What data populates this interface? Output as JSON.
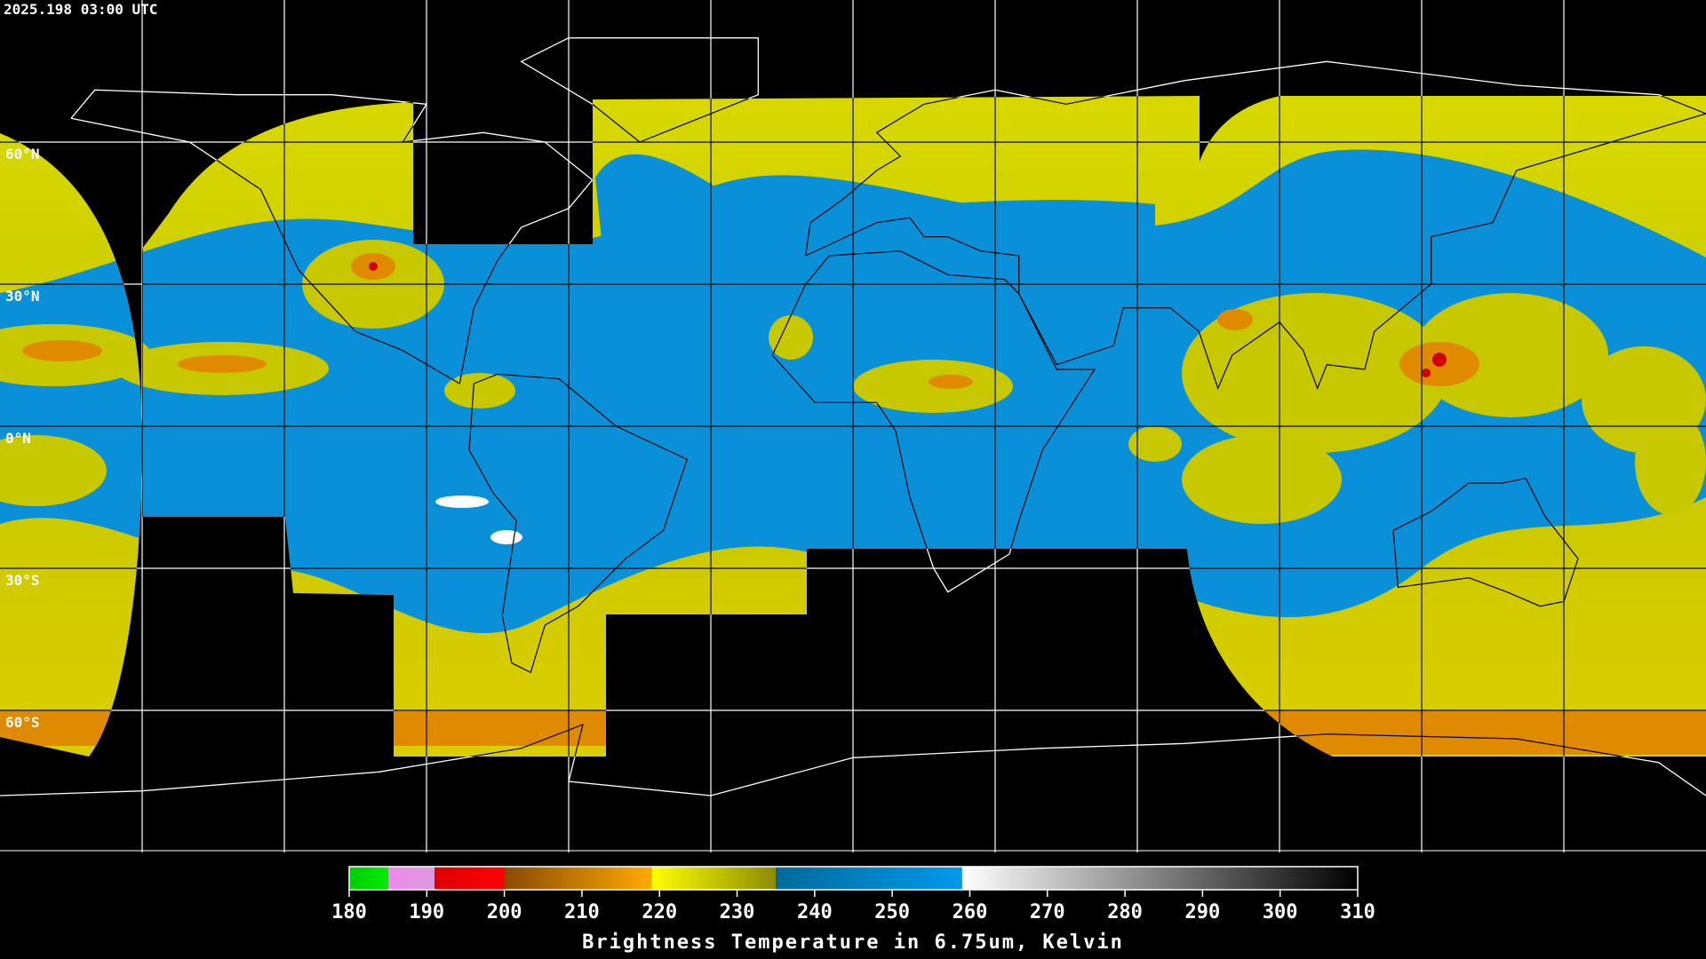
{
  "header": {
    "timestamp": "2025.198 03:00 UTC"
  },
  "map": {
    "lat_lines": [
      {
        "value": 60,
        "label": "60°N"
      },
      {
        "value": 30,
        "label": "30°N"
      },
      {
        "value": 0,
        "label": "0°N"
      },
      {
        "value": -30,
        "label": "30°S"
      },
      {
        "value": -60,
        "label": "60°S"
      }
    ],
    "lon_lines": [
      -150,
      -120,
      -90,
      -60,
      -30,
      0,
      30,
      60,
      90,
      120,
      150
    ]
  },
  "colorbar": {
    "title": "Brightness Temperature in 6.75um, Kelvin",
    "range": [
      180,
      310
    ],
    "ticks": [
      180,
      190,
      200,
      210,
      220,
      230,
      240,
      250,
      260,
      270,
      280,
      290,
      300,
      310
    ],
    "segments": [
      {
        "from": 180,
        "to": 185,
        "color": "#00cc00",
        "color_end": "#00ee00"
      },
      {
        "from": 185,
        "to": 191,
        "color": "#ee88ee",
        "color_end": "#dd99dd"
      },
      {
        "from": 191,
        "to": 200,
        "color": "#dd0000",
        "color_end": "#ff0000"
      },
      {
        "from": 200,
        "to": 219,
        "color": "#8b4a00",
        "color_end": "#ffaa00"
      },
      {
        "from": 219,
        "to": 235,
        "color": "#ffff00",
        "color_end": "#8b8b00"
      },
      {
        "from": 235,
        "to": 259,
        "color": "#006a9a",
        "color_end": "#0099ee"
      },
      {
        "from": 259,
        "to": 310,
        "color": "#ffffff",
        "color_end": "#000000"
      }
    ]
  }
}
